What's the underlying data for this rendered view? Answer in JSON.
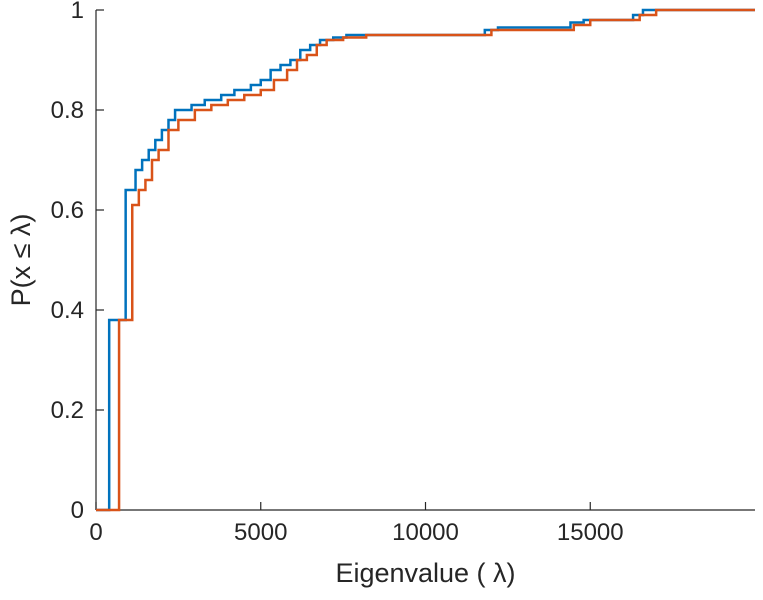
{
  "figure": {
    "background": "#ffffff",
    "axis_color": "#262626"
  },
  "chart_data": {
    "type": "line",
    "subtype": "ecdf-stairs",
    "title": "",
    "xlabel": "Eigenvalue (  λ)",
    "ylabel": "P(x ≤ λ)",
    "xlim": [
      0,
      20000
    ],
    "ylim": [
      0,
      1
    ],
    "grid": false,
    "legend": "none",
    "xticks": {
      "values": [
        0,
        5000,
        10000,
        15000
      ],
      "labels": [
        "0",
        "5000",
        "10000",
        "15000"
      ]
    },
    "yticks": {
      "values": [
        0,
        0.2,
        0.4,
        0.6,
        0.8,
        1
      ],
      "labels": [
        "0",
        "0.2",
        "0.4",
        "0.6",
        "0.8",
        "1"
      ]
    },
    "series": [
      {
        "name": "ecdf-blue",
        "color": "#0072BD",
        "line_width": 2.5,
        "points": [
          [
            400,
            0.38
          ],
          [
            900,
            0.64
          ],
          [
            1200,
            0.68
          ],
          [
            1400,
            0.7
          ],
          [
            1600,
            0.72
          ],
          [
            1800,
            0.74
          ],
          [
            2000,
            0.76
          ],
          [
            2200,
            0.78
          ],
          [
            2400,
            0.8
          ],
          [
            2900,
            0.81
          ],
          [
            3300,
            0.82
          ],
          [
            3800,
            0.83
          ],
          [
            4200,
            0.84
          ],
          [
            4700,
            0.85
          ],
          [
            5000,
            0.86
          ],
          [
            5300,
            0.88
          ],
          [
            5600,
            0.89
          ],
          [
            5900,
            0.9
          ],
          [
            6200,
            0.92
          ],
          [
            6500,
            0.93
          ],
          [
            6800,
            0.94
          ],
          [
            7200,
            0.945
          ],
          [
            7600,
            0.95
          ],
          [
            11800,
            0.96
          ],
          [
            12200,
            0.965
          ],
          [
            14400,
            0.975
          ],
          [
            14800,
            0.98
          ],
          [
            16300,
            0.99
          ],
          [
            16600,
            1.0
          ]
        ]
      },
      {
        "name": "ecdf-orange",
        "color": "#D95319",
        "line_width": 2.5,
        "points": [
          [
            700,
            0.38
          ],
          [
            1100,
            0.61
          ],
          [
            1300,
            0.64
          ],
          [
            1500,
            0.66
          ],
          [
            1700,
            0.7
          ],
          [
            1900,
            0.72
          ],
          [
            2200,
            0.76
          ],
          [
            2500,
            0.78
          ],
          [
            3000,
            0.8
          ],
          [
            3500,
            0.81
          ],
          [
            4000,
            0.82
          ],
          [
            4500,
            0.83
          ],
          [
            5000,
            0.84
          ],
          [
            5400,
            0.86
          ],
          [
            5800,
            0.88
          ],
          [
            6100,
            0.9
          ],
          [
            6400,
            0.91
          ],
          [
            6700,
            0.93
          ],
          [
            7000,
            0.94
          ],
          [
            7500,
            0.945
          ],
          [
            8200,
            0.95
          ],
          [
            12000,
            0.96
          ],
          [
            14500,
            0.97
          ],
          [
            15000,
            0.98
          ],
          [
            16500,
            0.99
          ],
          [
            17000,
            1.0
          ]
        ]
      }
    ]
  }
}
